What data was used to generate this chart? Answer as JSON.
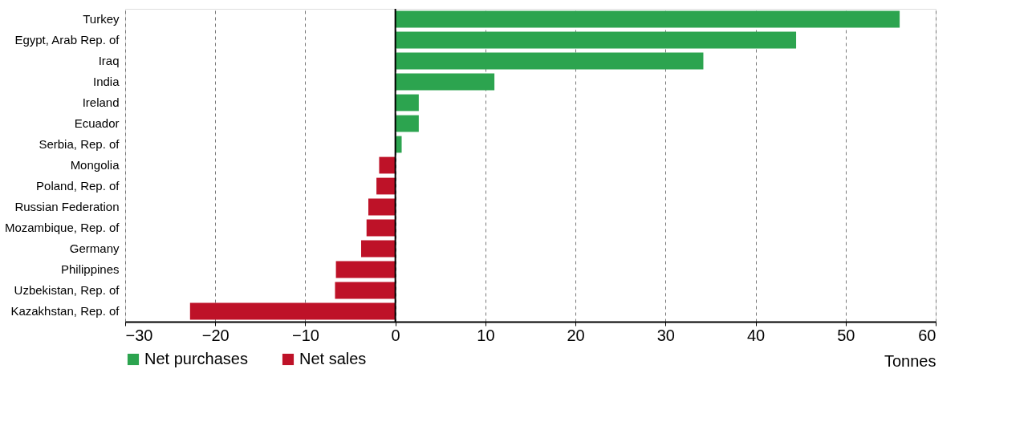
{
  "chart_data": {
    "type": "bar",
    "orientation": "horizontal",
    "xlabel": "Tonnes",
    "categories": [
      "Turkey",
      "Egypt, Arab Rep. of",
      "Iraq",
      "India",
      "Ireland",
      "Ecuador",
      "Serbia, Rep. of",
      "Mongolia",
      "Poland, Rep. of",
      "Russian Federation",
      "Mozambique, Rep. of",
      "Germany",
      "Philippines",
      "Uzbekistan, Rep. of",
      "Kazakhstan, Rep. of"
    ],
    "series": [
      {
        "name": "Net purchases",
        "color": "#2ca44f",
        "values": [
          56.0,
          44.5,
          34.2,
          11.0,
          2.6,
          2.6,
          0.7,
          null,
          null,
          null,
          null,
          null,
          null,
          null,
          null
        ]
      },
      {
        "name": "Net sales",
        "color": "#be1228",
        "values": [
          null,
          null,
          null,
          null,
          null,
          null,
          null,
          -1.8,
          -2.1,
          -3.0,
          -3.2,
          -3.8,
          -6.6,
          -6.7,
          -22.8
        ]
      }
    ],
    "xlim": [
      -30,
      60
    ],
    "xticks": [
      -30,
      -20,
      -10,
      0,
      10,
      20,
      30,
      40,
      50,
      60
    ],
    "grid": "x",
    "legend": "bottom left"
  }
}
